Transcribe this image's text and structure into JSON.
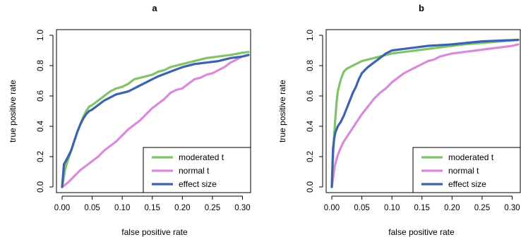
{
  "chart_data": [
    {
      "type": "line",
      "title": "a",
      "xlabel": "false positive rate",
      "ylabel": "true positive rate",
      "xlim": [
        0,
        0.31
      ],
      "ylim": [
        0,
        1.0
      ],
      "xticks": [
        "0.00",
        "0.05",
        "0.10",
        "0.15",
        "0.20",
        "0.25",
        "0.30"
      ],
      "yticks": [
        "0.0",
        "0.2",
        "0.4",
        "0.6",
        "0.8",
        "1.0"
      ],
      "legend_position": "bottom-right",
      "series": [
        {
          "name": "moderated t",
          "color": "#7dc46b",
          "x": [
            0,
            0.005,
            0.01,
            0.015,
            0.02,
            0.025,
            0.03,
            0.035,
            0.04,
            0.045,
            0.05,
            0.06,
            0.07,
            0.08,
            0.09,
            0.1,
            0.11,
            0.12,
            0.13,
            0.14,
            0.15,
            0.16,
            0.17,
            0.18,
            0.19,
            0.2,
            0.22,
            0.24,
            0.26,
            0.28,
            0.3,
            0.31
          ],
          "y": [
            0,
            0.12,
            0.18,
            0.24,
            0.3,
            0.36,
            0.41,
            0.46,
            0.5,
            0.53,
            0.54,
            0.57,
            0.6,
            0.63,
            0.65,
            0.66,
            0.68,
            0.71,
            0.72,
            0.73,
            0.74,
            0.76,
            0.77,
            0.79,
            0.8,
            0.81,
            0.83,
            0.85,
            0.86,
            0.87,
            0.885,
            0.89
          ]
        },
        {
          "name": "normal t",
          "color": "#da8ada",
          "x": [
            0,
            0.01,
            0.02,
            0.03,
            0.04,
            0.05,
            0.06,
            0.07,
            0.08,
            0.09,
            0.1,
            0.11,
            0.12,
            0.13,
            0.14,
            0.15,
            0.16,
            0.17,
            0.18,
            0.19,
            0.2,
            0.21,
            0.22,
            0.23,
            0.24,
            0.25,
            0.26,
            0.27,
            0.28,
            0.29,
            0.3,
            0.31
          ],
          "y": [
            0,
            0.03,
            0.07,
            0.11,
            0.14,
            0.17,
            0.2,
            0.24,
            0.27,
            0.3,
            0.34,
            0.38,
            0.41,
            0.44,
            0.48,
            0.52,
            0.55,
            0.58,
            0.62,
            0.64,
            0.65,
            0.68,
            0.71,
            0.72,
            0.74,
            0.75,
            0.77,
            0.79,
            0.82,
            0.84,
            0.86,
            0.87
          ]
        },
        {
          "name": "effect size",
          "color": "#3c64ae",
          "x": [
            0,
            0.003,
            0.006,
            0.01,
            0.015,
            0.02,
            0.025,
            0.03,
            0.035,
            0.04,
            0.045,
            0.05,
            0.06,
            0.07,
            0.08,
            0.09,
            0.1,
            0.11,
            0.12,
            0.13,
            0.14,
            0.15,
            0.16,
            0.18,
            0.2,
            0.22,
            0.24,
            0.26,
            0.28,
            0.3,
            0.31
          ],
          "y": [
            0,
            0.15,
            0.17,
            0.2,
            0.24,
            0.3,
            0.36,
            0.41,
            0.45,
            0.48,
            0.5,
            0.51,
            0.54,
            0.57,
            0.59,
            0.61,
            0.62,
            0.63,
            0.65,
            0.67,
            0.69,
            0.71,
            0.73,
            0.76,
            0.79,
            0.81,
            0.82,
            0.83,
            0.85,
            0.86,
            0.87
          ]
        }
      ]
    },
    {
      "type": "line",
      "title": "b",
      "xlabel": "false positive rate",
      "ylabel": "true positive rate",
      "xlim": [
        0,
        0.31
      ],
      "ylim": [
        0,
        1.0
      ],
      "xticks": [
        "0.00",
        "0.05",
        "0.10",
        "0.15",
        "0.20",
        "0.25",
        "0.30"
      ],
      "yticks": [
        "0.0",
        "0.2",
        "0.4",
        "0.6",
        "0.8",
        "1.0"
      ],
      "legend_position": "bottom-right",
      "series": [
        {
          "name": "moderated t",
          "color": "#7dc46b",
          "x": [
            0,
            0.002,
            0.004,
            0.006,
            0.008,
            0.01,
            0.013,
            0.016,
            0.02,
            0.025,
            0.03,
            0.04,
            0.05,
            0.06,
            0.08,
            0.1,
            0.12,
            0.14,
            0.16,
            0.18,
            0.2,
            0.22,
            0.25,
            0.28,
            0.31
          ],
          "y": [
            0,
            0.2,
            0.34,
            0.46,
            0.56,
            0.63,
            0.68,
            0.72,
            0.76,
            0.78,
            0.79,
            0.81,
            0.83,
            0.84,
            0.86,
            0.88,
            0.89,
            0.9,
            0.91,
            0.92,
            0.93,
            0.94,
            0.95,
            0.96,
            0.97
          ]
        },
        {
          "name": "normal t",
          "color": "#da8ada",
          "x": [
            0,
            0.005,
            0.01,
            0.015,
            0.02,
            0.025,
            0.03,
            0.04,
            0.05,
            0.06,
            0.07,
            0.08,
            0.09,
            0.1,
            0.11,
            0.12,
            0.13,
            0.14,
            0.15,
            0.16,
            0.17,
            0.18,
            0.2,
            0.22,
            0.24,
            0.26,
            0.28,
            0.3,
            0.31
          ],
          "y": [
            0,
            0.14,
            0.21,
            0.26,
            0.3,
            0.33,
            0.36,
            0.42,
            0.48,
            0.53,
            0.58,
            0.62,
            0.65,
            0.69,
            0.72,
            0.75,
            0.77,
            0.79,
            0.81,
            0.83,
            0.84,
            0.86,
            0.88,
            0.89,
            0.9,
            0.91,
            0.92,
            0.93,
            0.94
          ]
        },
        {
          "name": "effect size",
          "color": "#3c64ae",
          "x": [
            0,
            0.002,
            0.004,
            0.006,
            0.01,
            0.015,
            0.02,
            0.025,
            0.03,
            0.035,
            0.04,
            0.045,
            0.05,
            0.055,
            0.06,
            0.07,
            0.08,
            0.09,
            0.1,
            0.12,
            0.14,
            0.16,
            0.2,
            0.25,
            0.31
          ],
          "y": [
            0,
            0.25,
            0.32,
            0.36,
            0.4,
            0.43,
            0.47,
            0.52,
            0.57,
            0.62,
            0.66,
            0.71,
            0.75,
            0.77,
            0.79,
            0.82,
            0.85,
            0.88,
            0.9,
            0.91,
            0.92,
            0.93,
            0.94,
            0.96,
            0.97
          ]
        }
      ]
    }
  ]
}
